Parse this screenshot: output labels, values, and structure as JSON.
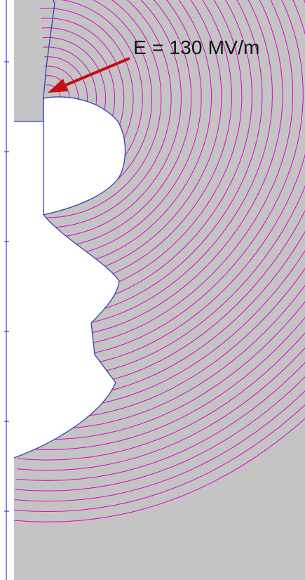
{
  "annotation": {
    "label": "E = 130 MV/m"
  },
  "colors": {
    "field_region": "#c4c4c4",
    "field_lines": "#e000d0",
    "boundary": "#3344aa",
    "arrow": "#c41010",
    "axis": "#3a3acc"
  },
  "diagram": {
    "field_line_count": 42,
    "axis_tick_count": 6
  }
}
